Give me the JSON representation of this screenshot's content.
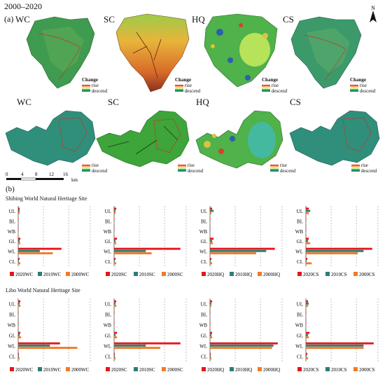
{
  "figure": {
    "title": "2000–2020",
    "panel_a_label": "(a)",
    "panel_b_label": "(b)",
    "north_label": "N",
    "scale": {
      "ticks": [
        "0",
        "4",
        "8",
        "12",
        "16"
      ],
      "unit": "km"
    },
    "legend": {
      "title": "Change",
      "rise": "rise",
      "descend": "descend"
    }
  },
  "maps": {
    "row1": [
      {
        "label": "WC",
        "palette": "green"
      },
      {
        "label": "SC",
        "palette": "orange"
      },
      {
        "label": "HQ",
        "palette": "mixed"
      },
      {
        "label": "CS",
        "palette": "green"
      }
    ],
    "row2": [
      {
        "label": "WC",
        "palette": "teal"
      },
      {
        "label": "SC",
        "palette": "green"
      },
      {
        "label": "HQ",
        "palette": "mixed"
      },
      {
        "label": "CS",
        "palette": "teal"
      }
    ]
  },
  "colors": {
    "y2020": "#e5161d",
    "y2010": "#2a7f72",
    "y2000": "#f07b28"
  },
  "chart_data": [
    {
      "type": "bar",
      "site": "Shibing World Natural Heritage Site",
      "service": "WC",
      "categories": [
        "UL",
        "BL",
        "WB",
        "GL",
        "WL",
        "CL"
      ],
      "series": [
        {
          "name": "2020WC",
          "values": [
            0.02,
            0.005,
            0.002,
            0.03,
            0.6,
            0.02
          ]
        },
        {
          "name": "2010WC",
          "values": [
            0.02,
            0.005,
            0.002,
            0.02,
            0.3,
            0.01
          ]
        },
        {
          "name": "2000WC",
          "values": [
            0.02,
            0.005,
            0.002,
            0.03,
            0.48,
            0.03
          ]
        }
      ]
    },
    {
      "type": "bar",
      "site": "Shibing World Natural Heritage Site",
      "service": "SC",
      "categories": [
        "UL",
        "BL",
        "WB",
        "GL",
        "WL",
        "CL"
      ],
      "series": [
        {
          "name": "2020SC",
          "values": [
            0.03,
            0.005,
            0.002,
            0.04,
            0.92,
            0.02
          ]
        },
        {
          "name": "2010SC",
          "values": [
            0.02,
            0.005,
            0.002,
            0.02,
            0.44,
            0.01
          ]
        },
        {
          "name": "2000SC",
          "values": [
            0.02,
            0.005,
            0.002,
            0.03,
            0.52,
            0.03
          ]
        }
      ]
    },
    {
      "type": "bar",
      "site": "Shibing World Natural Heritage Site",
      "service": "HQ",
      "categories": [
        "UL",
        "BL",
        "WB",
        "GL",
        "WL",
        "CL"
      ],
      "series": [
        {
          "name": "2020HQ",
          "values": [
            0.03,
            0.005,
            0.002,
            0.05,
            0.9,
            0.02
          ]
        },
        {
          "name": "2010HQ",
          "values": [
            0.05,
            0.005,
            0.002,
            0.03,
            0.78,
            0.01
          ]
        },
        {
          "name": "2000HQ",
          "values": [
            0.02,
            0.005,
            0.002,
            0.04,
            0.64,
            0.03
          ]
        }
      ]
    },
    {
      "type": "bar",
      "site": "Shibing World Natural Heritage Site",
      "service": "CS",
      "categories": [
        "UL",
        "BL",
        "WB",
        "GL",
        "WL",
        "CL"
      ],
      "series": [
        {
          "name": "2020CS",
          "values": [
            0.04,
            0.005,
            0.002,
            0.04,
            0.92,
            0.02
          ]
        },
        {
          "name": "2010CS",
          "values": [
            0.06,
            0.005,
            0.002,
            0.03,
            0.8,
            0.01
          ]
        },
        {
          "name": "2000CS",
          "values": [
            0.04,
            0.005,
            0.002,
            0.06,
            0.72,
            0.08
          ]
        }
      ]
    },
    {
      "type": "bar",
      "site": "Libo World Natural Heritage Site",
      "service": "WC",
      "categories": [
        "UL",
        "BL",
        "WB",
        "GL",
        "WL",
        "CL"
      ],
      "series": [
        {
          "name": "2020WC",
          "values": [
            0.03,
            0.005,
            0.002,
            0.03,
            0.58,
            0.01
          ]
        },
        {
          "name": "2010WC",
          "values": [
            0.02,
            0.005,
            0.002,
            0.02,
            0.44,
            0.01
          ]
        },
        {
          "name": "2000WC",
          "values": [
            0.03,
            0.005,
            0.002,
            0.04,
            0.82,
            0.02
          ]
        }
      ]
    },
    {
      "type": "bar",
      "site": "Libo World Natural Heritage Site",
      "service": "SC",
      "categories": [
        "UL",
        "BL",
        "WB",
        "GL",
        "WL",
        "CL"
      ],
      "series": [
        {
          "name": "2020SC",
          "values": [
            0.03,
            0.005,
            0.002,
            0.04,
            0.92,
            0.01
          ]
        },
        {
          "name": "2010SC",
          "values": [
            0.02,
            0.005,
            0.002,
            0.02,
            0.44,
            0.01
          ]
        },
        {
          "name": "2000SC",
          "values": [
            0.03,
            0.005,
            0.002,
            0.04,
            0.64,
            0.02
          ]
        }
      ]
    },
    {
      "type": "bar",
      "site": "Libo World Natural Heritage Site",
      "service": "HQ",
      "categories": [
        "UL",
        "BL",
        "WB",
        "GL",
        "WL",
        "CL"
      ],
      "series": [
        {
          "name": "2020HQ",
          "values": [
            0.03,
            0.005,
            0.002,
            0.03,
            0.94,
            0.01
          ]
        },
        {
          "name": "2010HQ",
          "values": [
            0.02,
            0.005,
            0.002,
            0.02,
            0.88,
            0.01
          ]
        },
        {
          "name": "2000HQ",
          "values": [
            0.02,
            0.005,
            0.002,
            0.03,
            0.86,
            0.02
          ]
        }
      ]
    },
    {
      "type": "bar",
      "site": "Libo World Natural Heritage Site",
      "service": "CS",
      "categories": [
        "UL",
        "BL",
        "WB",
        "GL",
        "WL",
        "CL"
      ],
      "series": [
        {
          "name": "2020CS",
          "values": [
            0.03,
            0.005,
            0.002,
            0.05,
            0.94,
            0.02
          ]
        },
        {
          "name": "2010CS",
          "values": [
            0.04,
            0.005,
            0.002,
            0.03,
            0.8,
            0.01
          ]
        },
        {
          "name": "2000CS",
          "values": [
            0.03,
            0.005,
            0.002,
            0.04,
            0.8,
            0.03
          ]
        }
      ]
    }
  ]
}
